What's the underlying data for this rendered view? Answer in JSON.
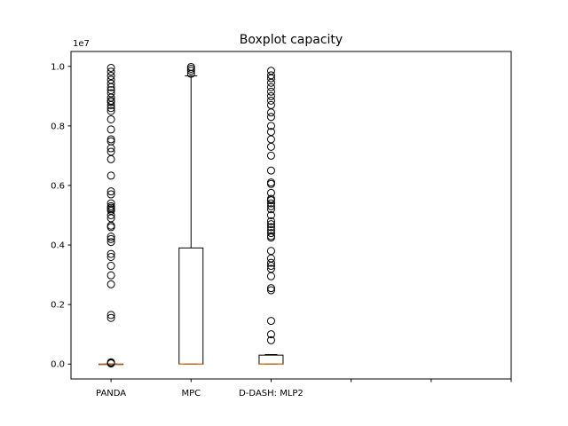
{
  "chart_data": {
    "type": "boxplot",
    "title": "Boxplot capacity",
    "xlabel": "",
    "ylabel": "",
    "y_offset_label": "1e7",
    "ylim": [
      -500000,
      10500000
    ],
    "yticks": [
      0,
      2000000,
      4000000,
      6000000,
      8000000,
      10000000
    ],
    "ytick_labels": [
      "0.0",
      "0.2",
      "0.4",
      "0.6",
      "0.8",
      "1.0"
    ],
    "xticks": [
      1,
      2,
      3,
      4,
      5,
      6
    ],
    "xtick_labels": [
      "PANDA",
      "MPC",
      "D-DASH: MLP2",
      "",
      "",
      ""
    ],
    "xlim": [
      0.5,
      6
    ],
    "box_color": "#000000",
    "median_color": "#ff7f0e",
    "grid": false,
    "boxes": [
      {
        "position": 1,
        "label": "PANDA",
        "whisker_low": 0,
        "q1": 0,
        "median": 0,
        "q3": 0,
        "whisker_high": 0,
        "outliers": [
          20000,
          40000,
          60000,
          1550000,
          1650000,
          2680000,
          2980000,
          3300000,
          3600000,
          3700000,
          4100000,
          4200000,
          4280000,
          4600000,
          4650000,
          4900000,
          5000000,
          5150000,
          5200000,
          5250000,
          5300000,
          5400000,
          5700000,
          5800000,
          6330000,
          6880000,
          7130000,
          7250000,
          7480000,
          7550000,
          7880000,
          8220000,
          8500000,
          8600000,
          8700000,
          8800000,
          8850000,
          8950000,
          9100000,
          9200000,
          9300000,
          9420000,
          9550000,
          9680000,
          9820000,
          9950000
        ]
      },
      {
        "position": 2,
        "label": "MPC",
        "whisker_low": 0,
        "q1": 0,
        "median": 0,
        "q3": 3900000,
        "whisker_high": 9680000,
        "outliers": [
          9750000,
          9850000,
          9920000,
          9980000
        ]
      },
      {
        "position": 3,
        "label": "D-DASH: MLP2",
        "whisker_low": 0,
        "q1": 0,
        "median": 0,
        "q3": 300000,
        "whisker_high": 320000,
        "outliers": [
          800000,
          1000000,
          1450000,
          2480000,
          2550000,
          2950000,
          3200000,
          3300000,
          3400000,
          3550000,
          3800000,
          4250000,
          4300000,
          4400000,
          4500000,
          4600000,
          4700000,
          4800000,
          5000000,
          5200000,
          5300000,
          5400000,
          5500000,
          5550000,
          5750000,
          6050000,
          6100000,
          6500000,
          7000000,
          7300000,
          7550000,
          7800000,
          8000000,
          8300000,
          8450000,
          8700000,
          8850000,
          9000000,
          9150000,
          9300000,
          9450000,
          9600000,
          9700000,
          9850000
        ]
      }
    ]
  }
}
